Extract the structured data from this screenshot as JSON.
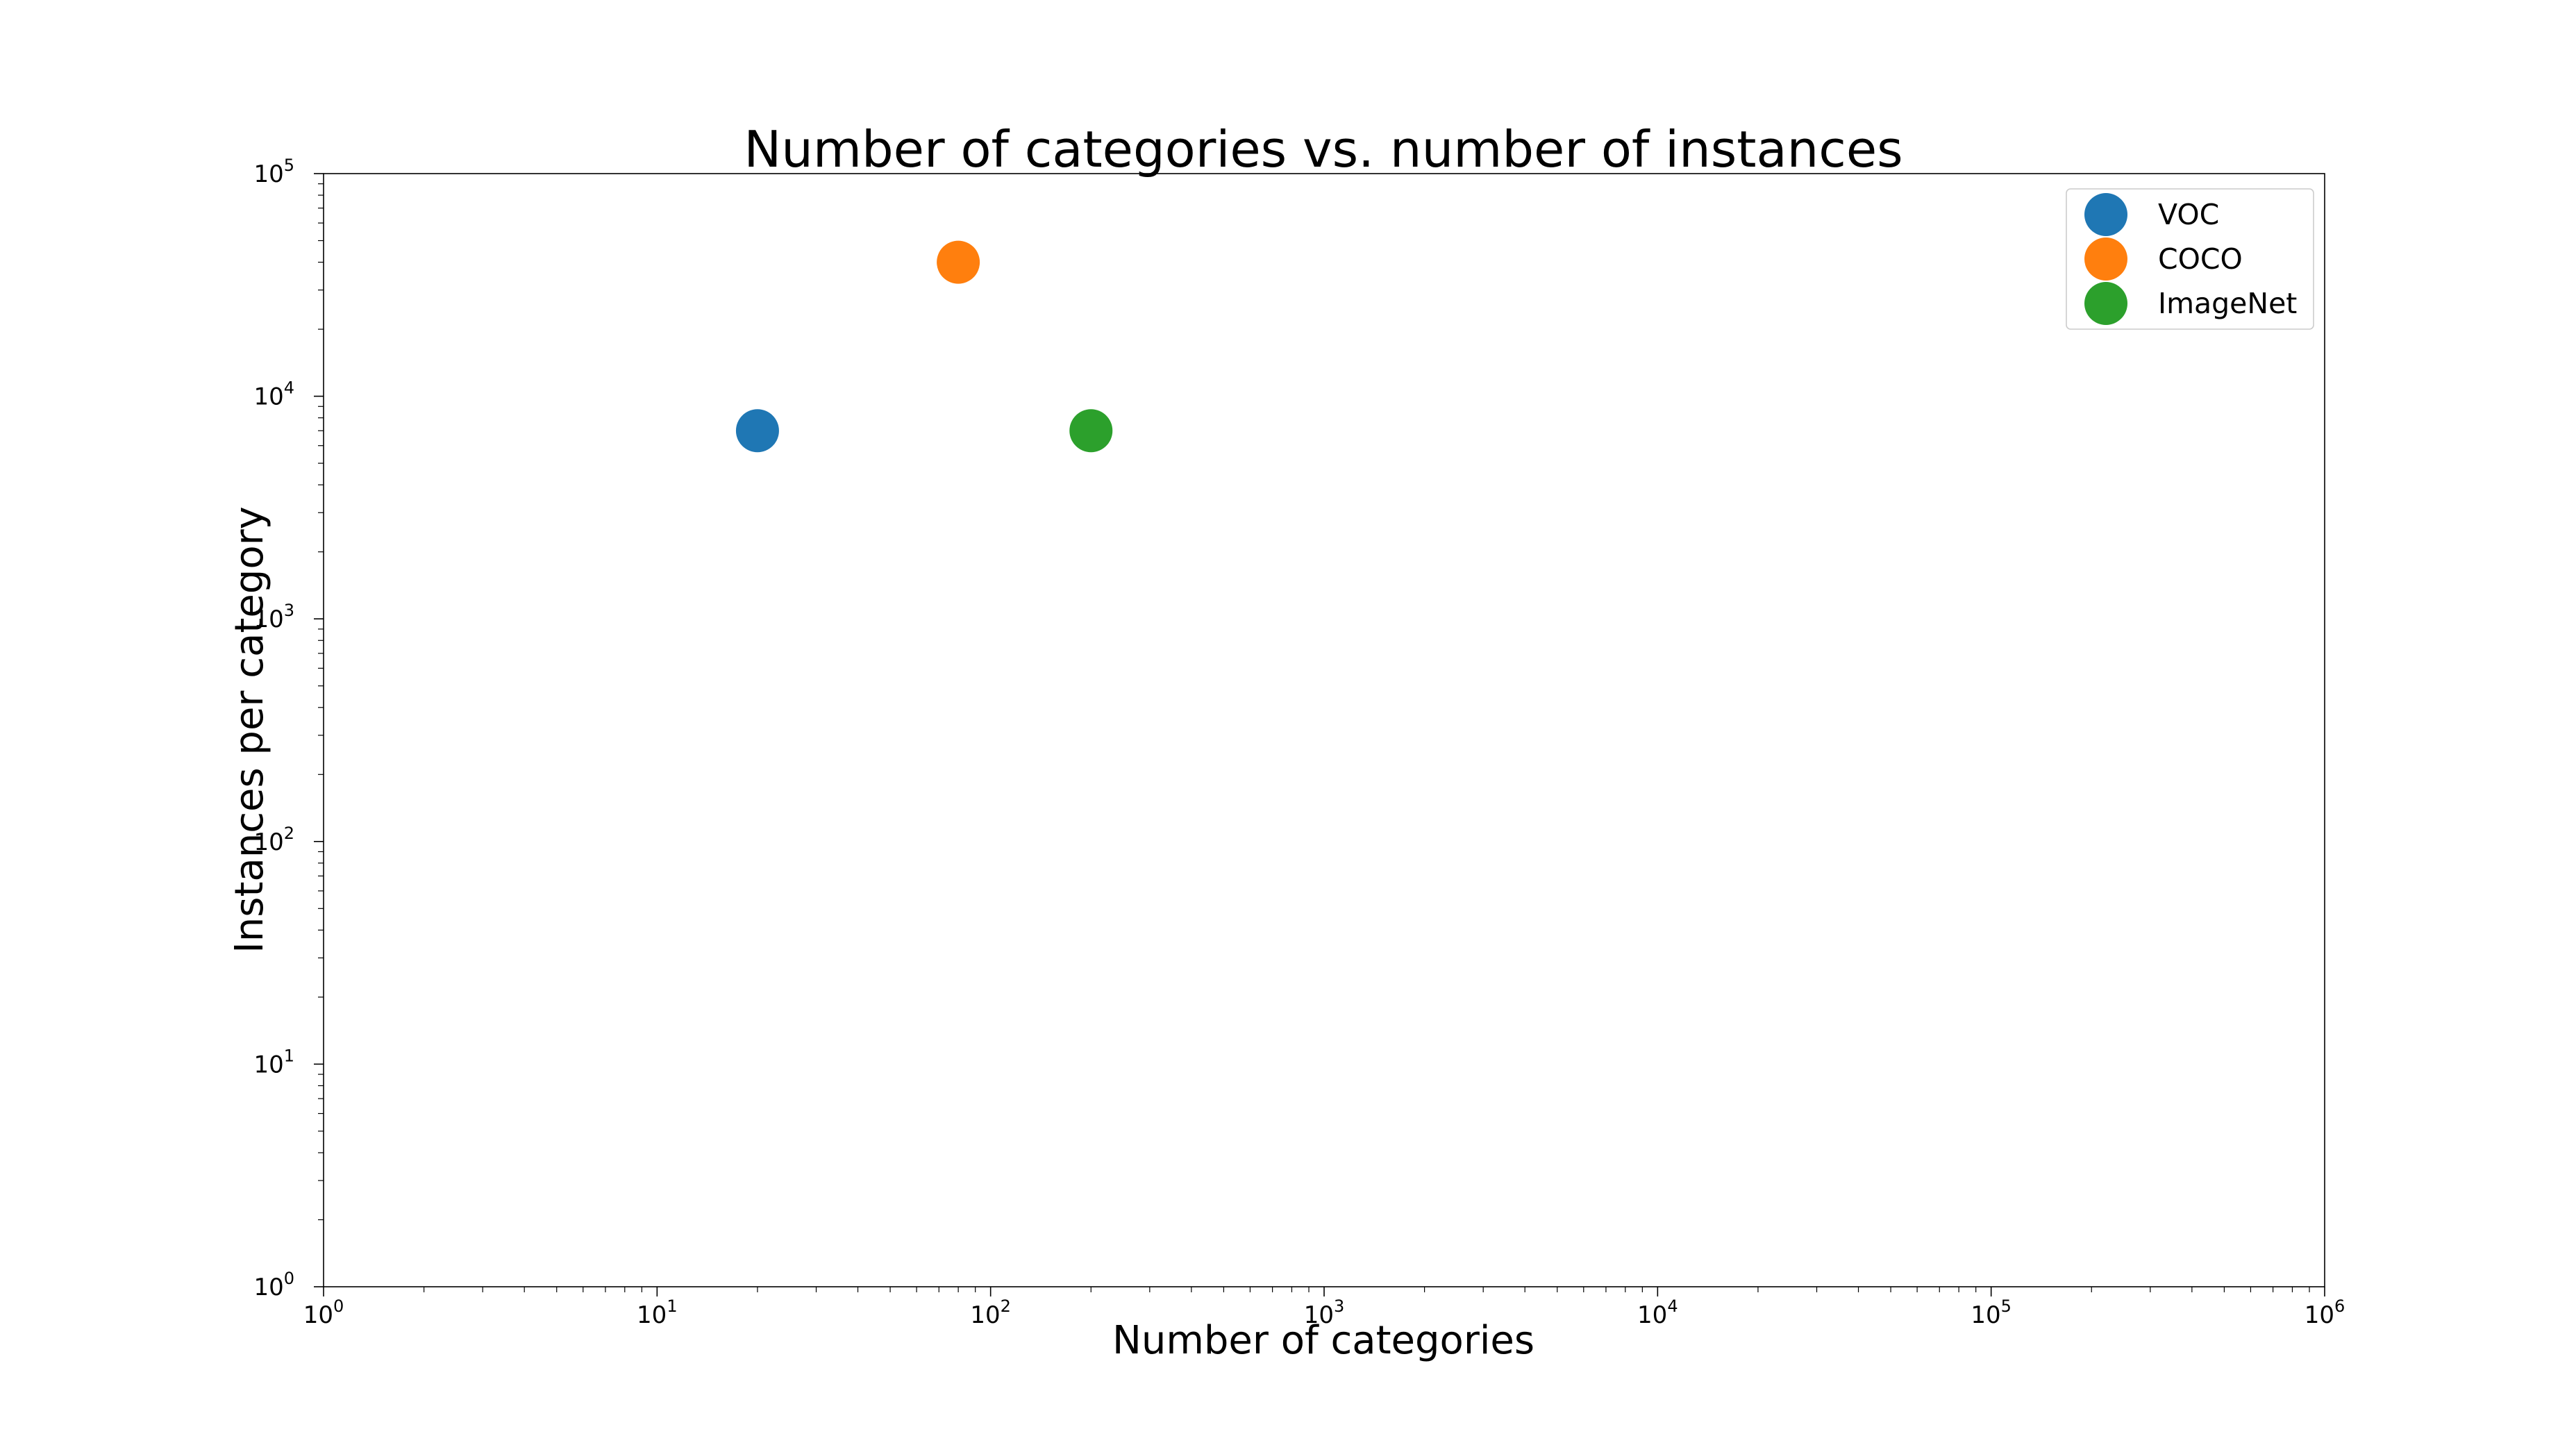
{
  "chart_data": {
    "type": "scatter",
    "title": "Number of categories vs. number of instances",
    "xlabel": "Number of categories",
    "ylabel": "Instances per category",
    "xscale": "log",
    "yscale": "log",
    "xlim": [
      1,
      1000000
    ],
    "ylim": [
      1,
      100000
    ],
    "grid": false,
    "legend_position": "top-right",
    "x_ticks": [
      {
        "base": "10",
        "exp": "0"
      },
      {
        "base": "10",
        "exp": "1"
      },
      {
        "base": "10",
        "exp": "2"
      },
      {
        "base": "10",
        "exp": "3"
      },
      {
        "base": "10",
        "exp": "4"
      },
      {
        "base": "10",
        "exp": "5"
      },
      {
        "base": "10",
        "exp": "6"
      }
    ],
    "y_ticks": [
      {
        "base": "10",
        "exp": "0"
      },
      {
        "base": "10",
        "exp": "1"
      },
      {
        "base": "10",
        "exp": "2"
      },
      {
        "base": "10",
        "exp": "3"
      },
      {
        "base": "10",
        "exp": "4"
      },
      {
        "base": "10",
        "exp": "5"
      }
    ],
    "series": [
      {
        "name": "VOC",
        "color": "#1f77b4",
        "x": [
          20
        ],
        "y": [
          7000
        ]
      },
      {
        "name": "COCO",
        "color": "#ff7f0e",
        "x": [
          80
        ],
        "y": [
          40000
        ]
      },
      {
        "name": "ImageNet",
        "color": "#2ca02c",
        "x": [
          200
        ],
        "y": [
          7000
        ]
      }
    ]
  }
}
